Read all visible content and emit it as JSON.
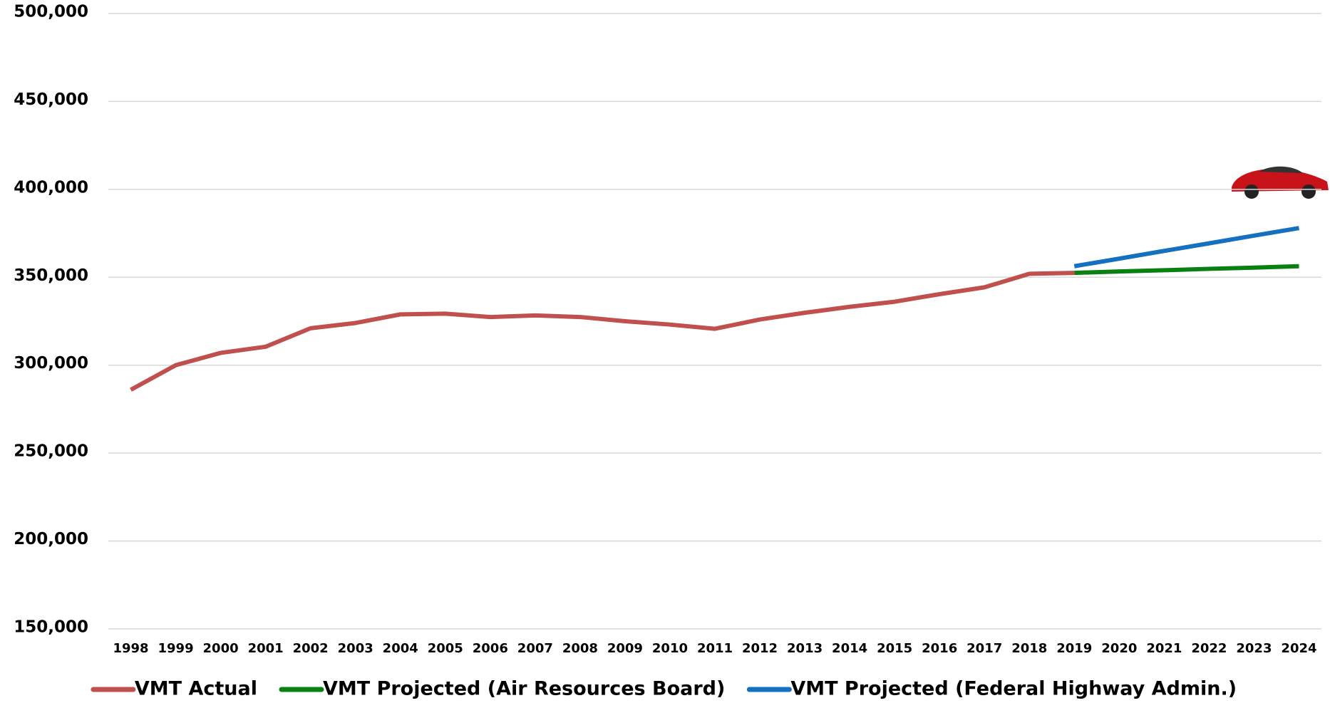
{
  "chart_data": {
    "type": "line",
    "categories": [
      "1998",
      "1999",
      "2000",
      "2001",
      "2002",
      "2003",
      "2004",
      "2005",
      "2006",
      "2007",
      "2008",
      "2009",
      "2010",
      "2011",
      "2012",
      "2013",
      "2014",
      "2015",
      "2016",
      "2017",
      "2018",
      "2019",
      "2020",
      "2021",
      "2022",
      "2023",
      "2024"
    ],
    "series": [
      {
        "name": "VMT Actual",
        "color": "#c0504d",
        "values": [
          286000,
          300000,
          307000,
          310500,
          321000,
          324000,
          328900,
          329300,
          327400,
          328300,
          327400,
          325000,
          323100,
          320700,
          326000,
          329800,
          333200,
          336100,
          340400,
          344300,
          352000,
          352500,
          null,
          null,
          null,
          null,
          null
        ]
      },
      {
        "name": "VMT Projected (Air Resources Board)",
        "color": "#0a8012",
        "values": [
          null,
          null,
          null,
          null,
          null,
          null,
          null,
          null,
          null,
          null,
          null,
          null,
          null,
          null,
          null,
          null,
          null,
          null,
          null,
          null,
          null,
          352500,
          353300,
          354000,
          354800,
          355500,
          356300
        ]
      },
      {
        "name": "VMT Projected (Federal Highway Admin.)",
        "color": "#1570c0",
        "values": [
          null,
          null,
          null,
          null,
          null,
          null,
          null,
          null,
          null,
          null,
          null,
          null,
          null,
          null,
          null,
          null,
          null,
          null,
          null,
          null,
          null,
          356300,
          360600,
          365000,
          369300,
          373700,
          378000
        ]
      }
    ],
    "ylim": [
      150000,
      500000
    ],
    "yticks": [
      {
        "value": 150000,
        "label": "150,000"
      },
      {
        "value": 200000,
        "label": "200,000"
      },
      {
        "value": 250000,
        "label": "250,000"
      },
      {
        "value": 300000,
        "label": "300,000"
      },
      {
        "value": 350000,
        "label": "350,000"
      },
      {
        "value": 400000,
        "label": "400,000"
      },
      {
        "value": 450000,
        "label": "450,000"
      },
      {
        "value": 500000,
        "label": "500,000"
      }
    ],
    "grid": true,
    "legend": "bottom"
  }
}
